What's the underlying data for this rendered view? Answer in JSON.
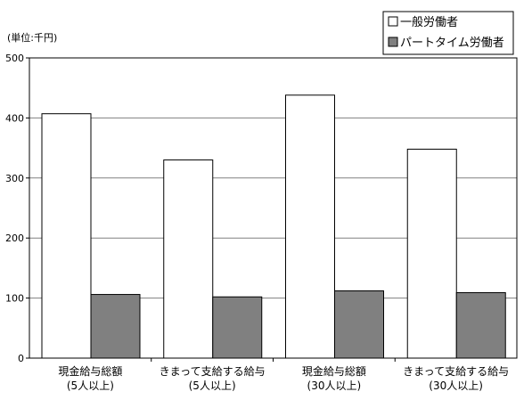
{
  "chart_data": {
    "type": "bar",
    "unit_label": "(単位:千円)",
    "categories": [
      [
        "現金給与総額",
        "(5人以上)"
      ],
      [
        "きまって支給する給与",
        "(5人以上)"
      ],
      [
        "現金給与総額",
        "(30人以上)"
      ],
      [
        "きまって支給する給与",
        "(30人以上)"
      ]
    ],
    "series": [
      {
        "name": "一般労働者",
        "color": "#ffffff",
        "values": [
          407,
          330,
          438,
          348
        ]
      },
      {
        "name": "パートタイム労働者",
        "color": "#808080",
        "values": [
          106,
          102,
          112,
          109
        ]
      }
    ],
    "ylim": [
      0,
      500
    ],
    "yticks": [
      0,
      100,
      200,
      300,
      400,
      500
    ],
    "grid": true,
    "legend_position": "top-right"
  }
}
